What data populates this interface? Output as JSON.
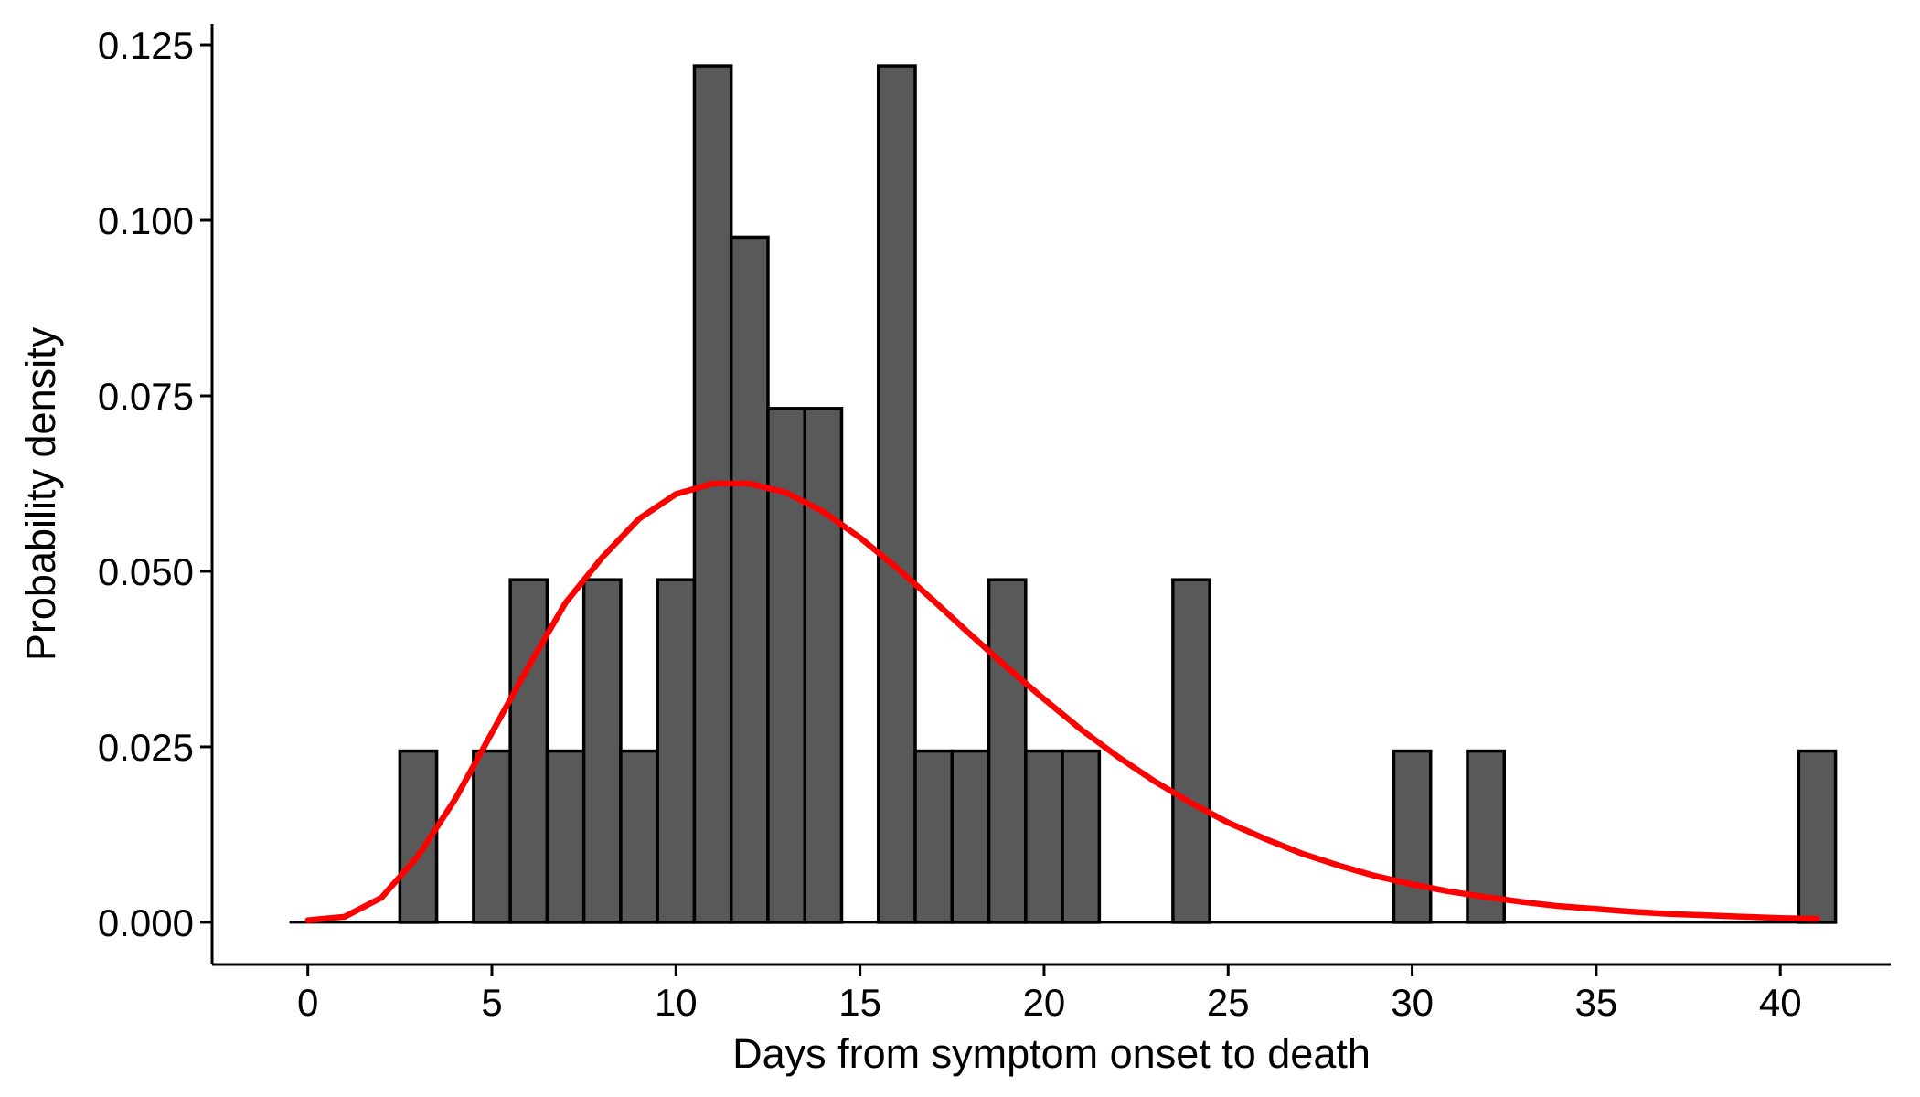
{
  "chart_data": {
    "type": "bar",
    "subtype": "histogram",
    "xlabel": "Days from symptom onset to death",
    "ylabel": "Probability density",
    "xlim": [
      -2.6,
      43
    ],
    "ylim": [
      -0.006,
      0.128
    ],
    "x_ticks": [
      0,
      5,
      10,
      15,
      20,
      25,
      30,
      35,
      40
    ],
    "y_ticks": [
      0.0,
      0.025,
      0.05,
      0.075,
      0.1,
      0.125
    ],
    "y_tick_labels": [
      "0.000",
      "0.025",
      "0.050",
      "0.075",
      "0.100",
      "0.125"
    ],
    "grid": false,
    "bin_width": 1,
    "bins": {
      "x": [
        0,
        1,
        2,
        3,
        4,
        5,
        6,
        7,
        8,
        9,
        10,
        11,
        12,
        13,
        14,
        15,
        16,
        17,
        18,
        19,
        20,
        21,
        22,
        23,
        24,
        25,
        26,
        27,
        28,
        29,
        30,
        31,
        32,
        33,
        34,
        35,
        36,
        37,
        38,
        39,
        40,
        41
      ],
      "density": [
        0,
        0,
        0,
        0.0244,
        0,
        0.0244,
        0.0488,
        0.0244,
        0.0488,
        0.0244,
        0.0488,
        0.122,
        0.0976,
        0.0732,
        0.0732,
        0,
        0.122,
        0.0244,
        0.0244,
        0.0488,
        0.0244,
        0.0244,
        0,
        0,
        0.0488,
        0,
        0,
        0,
        0,
        0,
        0.0244,
        0,
        0.0244,
        0,
        0,
        0,
        0,
        0,
        0,
        0,
        0,
        0.0244
      ]
    },
    "fitted_curve": {
      "color": "#ff0000",
      "x": [
        0,
        1,
        2,
        3,
        4,
        5,
        6,
        7,
        8,
        9,
        10,
        11,
        12,
        13,
        14,
        15,
        16,
        17,
        18,
        19,
        20,
        21,
        22,
        23,
        24,
        25,
        26,
        27,
        28,
        29,
        30,
        31,
        32,
        33,
        34,
        35,
        36,
        37,
        38,
        39,
        40,
        41
      ],
      "y": [
        0.0003,
        0.0008,
        0.0035,
        0.0095,
        0.0175,
        0.027,
        0.0365,
        0.0455,
        0.052,
        0.0575,
        0.061,
        0.0625,
        0.0625,
        0.0612,
        0.0585,
        0.0548,
        0.0505,
        0.0458,
        0.041,
        0.0363,
        0.0318,
        0.0275,
        0.0236,
        0.0201,
        0.017,
        0.0142,
        0.0119,
        0.0098,
        0.0081,
        0.0066,
        0.0054,
        0.0044,
        0.0036,
        0.0029,
        0.0023,
        0.0019,
        0.0015,
        0.0012,
        0.001,
        0.0008,
        0.0006,
        0.0005
      ]
    },
    "bar_color": "#595959",
    "bar_edge_color": "#000000"
  }
}
